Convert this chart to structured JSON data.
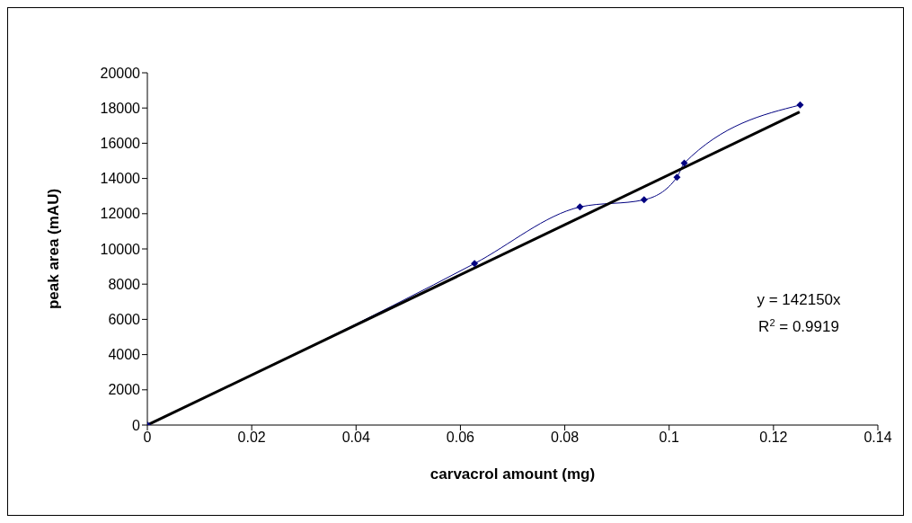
{
  "chart_data": {
    "type": "line",
    "xlabel": "carvacrol amount (mg)",
    "ylabel": "peak area (mAU)",
    "xlim": [
      0,
      0.14
    ],
    "xticks": [
      0,
      0.02,
      0.04,
      0.06,
      0.08,
      0.1,
      0.12,
      0.14
    ],
    "ylim": [
      0,
      20000
    ],
    "yticks": [
      0,
      2000,
      4000,
      6000,
      8000,
      10000,
      12000,
      14000,
      16000,
      18000,
      20000
    ],
    "series": [
      {
        "color": "#000080",
        "marker": "diamond",
        "x": [
          0,
          0.0627,
          0.0829,
          0.0952,
          0.1015,
          0.1029,
          0.1251
        ],
        "values": [
          0,
          9170,
          12380,
          12790,
          14070,
          14870,
          18170
        ]
      },
      {
        "type": "line",
        "color": "#000000",
        "marker": "none",
        "x": [
          0,
          0.125
        ],
        "values": [
          0,
          17770
        ]
      }
    ],
    "annotations": [
      "y = 142150x",
      "R$^{2}$ = 0.9919"
    ]
  }
}
